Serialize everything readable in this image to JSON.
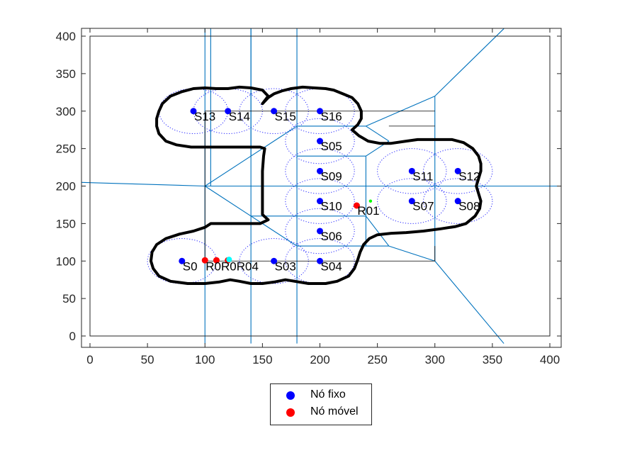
{
  "chart_data": {
    "type": "scatter",
    "xlim": [
      0,
      400
    ],
    "ylim": [
      0,
      400
    ],
    "xticks": [
      0,
      50,
      100,
      150,
      200,
      250,
      300,
      350,
      400
    ],
    "yticks": [
      0,
      50,
      100,
      150,
      200,
      250,
      300,
      350,
      400
    ],
    "grid": false,
    "legend_location": "bottom-center-outside",
    "colors": {
      "fixed": "#0000ff",
      "mobile": "#ff0000",
      "voronoi": "#0072bd",
      "coverage": "#0000ff",
      "boundary": "#000000",
      "extra_cyan": "#00ffff",
      "extra_green": "#00ff00"
    },
    "series": [
      {
        "name": "Nó fixo",
        "color": "#0000ff",
        "points": [
          {
            "label": "S0",
            "x": 80,
            "y": 100
          },
          {
            "label": "S03",
            "x": 160,
            "y": 100
          },
          {
            "label": "S04",
            "x": 200,
            "y": 100
          },
          {
            "label": "S05",
            "x": 200,
            "y": 260
          },
          {
            "label": "S06",
            "x": 200,
            "y": 140
          },
          {
            "label": "S07",
            "x": 280,
            "y": 180
          },
          {
            "label": "S08",
            "x": 320,
            "y": 180
          },
          {
            "label": "S09",
            "x": 200,
            "y": 220
          },
          {
            "label": "S10",
            "x": 200,
            "y": 180
          },
          {
            "label": "S11",
            "x": 280,
            "y": 220
          },
          {
            "label": "S12",
            "x": 320,
            "y": 220
          },
          {
            "label": "S13",
            "x": 90,
            "y": 300
          },
          {
            "label": "S14",
            "x": 120,
            "y": 300
          },
          {
            "label": "S15",
            "x": 160,
            "y": 300
          },
          {
            "label": "S16",
            "x": 200,
            "y": 300
          }
        ]
      },
      {
        "name": "Nó móvel",
        "color": "#ff0000",
        "points": [
          {
            "label": "R01",
            "x": 232,
            "y": 174
          },
          {
            "label": "R02",
            "x": 100,
            "y": 101
          },
          {
            "label": "R03",
            "x": 110,
            "y": 101
          },
          {
            "label": "R04",
            "x": 120,
            "y": 101
          }
        ]
      }
    ],
    "extra_points": [
      {
        "x": 121,
        "y": 102,
        "color": "#00ffff"
      },
      {
        "x": 244,
        "y": 180,
        "color": "#00ff00"
      }
    ],
    "coverage_radius": 30,
    "overlap_label": "R0R0R04",
    "voronoi_edges": [
      [
        [
          100,
          -10
        ],
        [
          100,
          410
        ]
      ],
      [
        [
          105,
          200
        ],
        [
          105,
          410
        ]
      ],
      [
        [
          140,
          -10
        ],
        [
          140,
          410
        ]
      ],
      [
        [
          180,
          -10
        ],
        [
          180,
          410
        ]
      ],
      [
        [
          140,
          410
        ],
        [
          140,
          240
        ]
      ],
      [
        [
          140,
          240
        ],
        [
          180,
          280
        ]
      ],
      [
        [
          180,
          280
        ],
        [
          240,
          280
        ]
      ],
      [
        [
          240,
          280
        ],
        [
          300,
          320
        ]
      ],
      [
        [
          300,
          320
        ],
        [
          360,
          410
        ]
      ],
      [
        [
          240,
          280
        ],
        [
          250,
          270
        ]
      ],
      [
        [
          250,
          270
        ],
        [
          260,
          260
        ]
      ],
      [
        [
          -10,
          205
        ],
        [
          100,
          200
        ]
      ],
      [
        [
          100,
          200
        ],
        [
          410,
          200
        ]
      ],
      [
        [
          100,
          200
        ],
        [
          140,
          240
        ]
      ],
      [
        [
          100,
          200
        ],
        [
          140,
          160
        ]
      ],
      [
        [
          140,
          160
        ],
        [
          180,
          160
        ]
      ],
      [
        [
          180,
          160
        ],
        [
          240,
          160
        ]
      ],
      [
        [
          140,
          160
        ],
        [
          180,
          120
        ]
      ],
      [
        [
          180,
          120
        ],
        [
          260,
          120
        ]
      ],
      [
        [
          240,
          160
        ],
        [
          260,
          120
        ]
      ],
      [
        [
          260,
          120
        ],
        [
          300,
          100
        ]
      ],
      [
        [
          300,
          100
        ],
        [
          360,
          -10
        ]
      ],
      [
        [
          300,
          100
        ],
        [
          300,
          320
        ]
      ],
      [
        [
          240,
          240
        ],
        [
          240,
          120
        ]
      ],
      [
        [
          180,
          240
        ],
        [
          240,
          240
        ]
      ],
      [
        [
          240,
          240
        ],
        [
          260,
          260
        ]
      ]
    ],
    "black_segments": [
      [
        [
          100,
          300
        ],
        [
          300,
          300
        ]
      ],
      [
        [
          100,
          300
        ],
        [
          100,
          100
        ]
      ],
      [
        [
          100,
          100
        ],
        [
          300,
          100
        ]
      ],
      [
        [
          300,
          100
        ],
        [
          300,
          120
        ]
      ],
      [
        [
          260,
          280
        ],
        [
          300,
          280
        ]
      ]
    ],
    "boundary_paths": [
      [
        [
          150,
          310
        ],
        [
          155,
          318
        ],
        [
          160,
          323
        ],
        [
          167,
          327
        ],
        [
          175,
          330
        ],
        [
          185,
          332
        ],
        [
          195,
          331
        ],
        [
          205,
          330
        ],
        [
          212,
          328
        ],
        [
          220,
          323
        ],
        [
          228,
          318
        ],
        [
          233,
          310
        ],
        [
          236,
          300
        ],
        [
          236,
          290
        ],
        [
          233,
          282
        ],
        [
          228,
          275
        ],
        [
          234,
          267
        ],
        [
          242,
          260
        ],
        [
          252,
          257
        ],
        [
          262,
          257
        ],
        [
          275,
          260
        ],
        [
          285,
          262
        ],
        [
          300,
          262
        ],
        [
          315,
          262
        ],
        [
          325,
          258
        ],
        [
          333,
          250
        ],
        [
          338,
          240
        ],
        [
          340,
          230
        ],
        [
          340,
          220
        ],
        [
          338,
          210
        ],
        [
          336,
          200
        ],
        [
          338,
          190
        ],
        [
          340,
          180
        ],
        [
          339,
          170
        ],
        [
          335,
          160
        ],
        [
          327,
          150
        ],
        [
          318,
          146
        ],
        [
          305,
          143
        ],
        [
          290,
          140
        ],
        [
          275,
          138
        ],
        [
          262,
          137
        ],
        [
          250,
          135
        ],
        [
          243,
          130
        ],
        [
          238,
          122
        ],
        [
          235,
          112
        ],
        [
          233,
          102
        ],
        [
          230,
          90
        ],
        [
          225,
          80
        ],
        [
          215,
          73
        ],
        [
          205,
          70
        ],
        [
          190,
          70
        ],
        [
          178,
          73
        ],
        [
          170,
          75
        ],
        [
          160,
          72
        ],
        [
          150,
          70
        ],
        [
          140,
          70
        ],
        [
          130,
          73
        ],
        [
          122,
          75
        ],
        [
          112,
          72
        ],
        [
          100,
          70
        ],
        [
          85,
          70
        ],
        [
          70,
          73
        ],
        [
          60,
          80
        ],
        [
          55,
          90
        ],
        [
          53,
          100
        ],
        [
          54,
          112
        ],
        [
          58,
          122
        ],
        [
          66,
          130
        ],
        [
          78,
          136
        ],
        [
          90,
          140
        ],
        [
          100,
          145
        ],
        [
          105,
          150
        ],
        [
          115,
          150
        ],
        [
          130,
          150
        ],
        [
          140,
          150
        ],
        [
          148,
          150
        ],
        [
          155,
          155
        ],
        [
          150,
          162
        ],
        [
          150,
          180
        ],
        [
          150,
          200
        ],
        [
          150,
          220
        ],
        [
          151,
          240
        ],
        [
          152,
          250
        ],
        [
          148,
          252
        ],
        [
          140,
          252
        ],
        [
          130,
          252
        ],
        [
          115,
          252
        ],
        [
          100,
          252
        ],
        [
          88,
          252
        ],
        [
          75,
          255
        ],
        [
          66,
          260
        ],
        [
          60,
          270
        ],
        [
          58,
          280
        ],
        [
          58,
          290
        ],
        [
          60,
          300
        ],
        [
          63,
          310
        ],
        [
          70,
          320
        ],
        [
          80,
          326
        ],
        [
          90,
          330
        ],
        [
          100,
          331
        ],
        [
          110,
          330
        ],
        [
          120,
          330
        ],
        [
          130,
          332
        ],
        [
          140,
          331
        ],
        [
          150,
          328
        ],
        [
          155,
          320
        ],
        [
          150,
          310
        ]
      ]
    ]
  },
  "legend": {
    "fixed_label": "Nó fixo",
    "mobile_label": "Nó móvel"
  }
}
